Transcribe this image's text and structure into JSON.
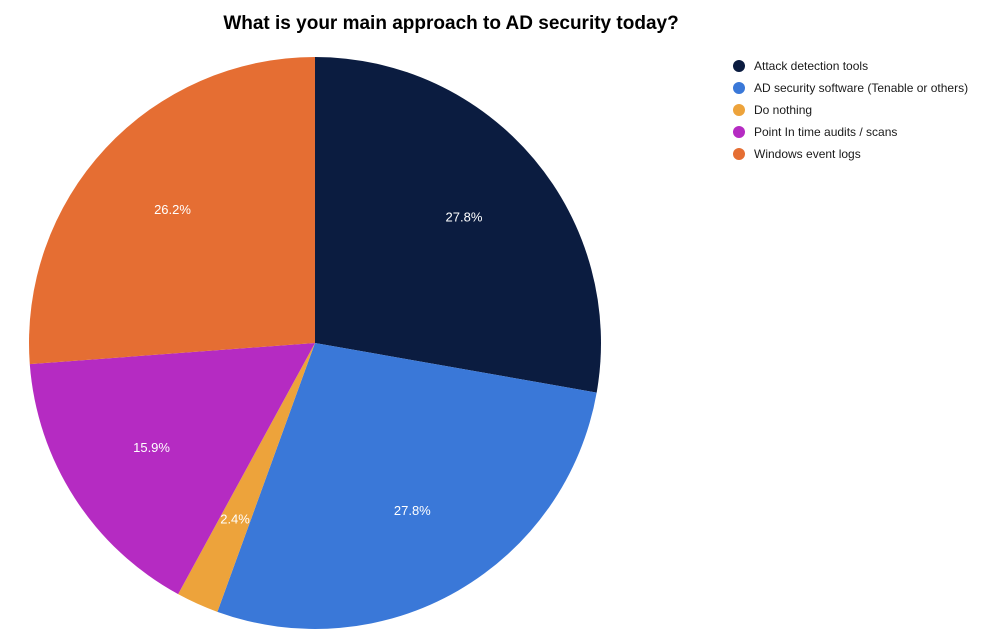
{
  "chart_data": {
    "type": "pie",
    "title": "What is your main approach to AD security today?",
    "legend_position": "right",
    "slices": [
      {
        "label": "Attack detection tools",
        "value": 27.8,
        "value_label": "27.8%",
        "color": "#0b1c40"
      },
      {
        "label": "AD security software (Tenable or others)",
        "value": 27.8,
        "value_label": "27.8%",
        "color": "#3a78d8"
      },
      {
        "label": "Do nothing",
        "value": 2.4,
        "value_label": "2.4%",
        "color": "#eda33b"
      },
      {
        "label": "Point In time audits / scans",
        "value": 15.9,
        "value_label": "15.9%",
        "color": "#b52bc2"
      },
      {
        "label": "Windows event logs",
        "value": 26.2,
        "value_label": "26.2%",
        "color": "#e56e33"
      }
    ]
  }
}
